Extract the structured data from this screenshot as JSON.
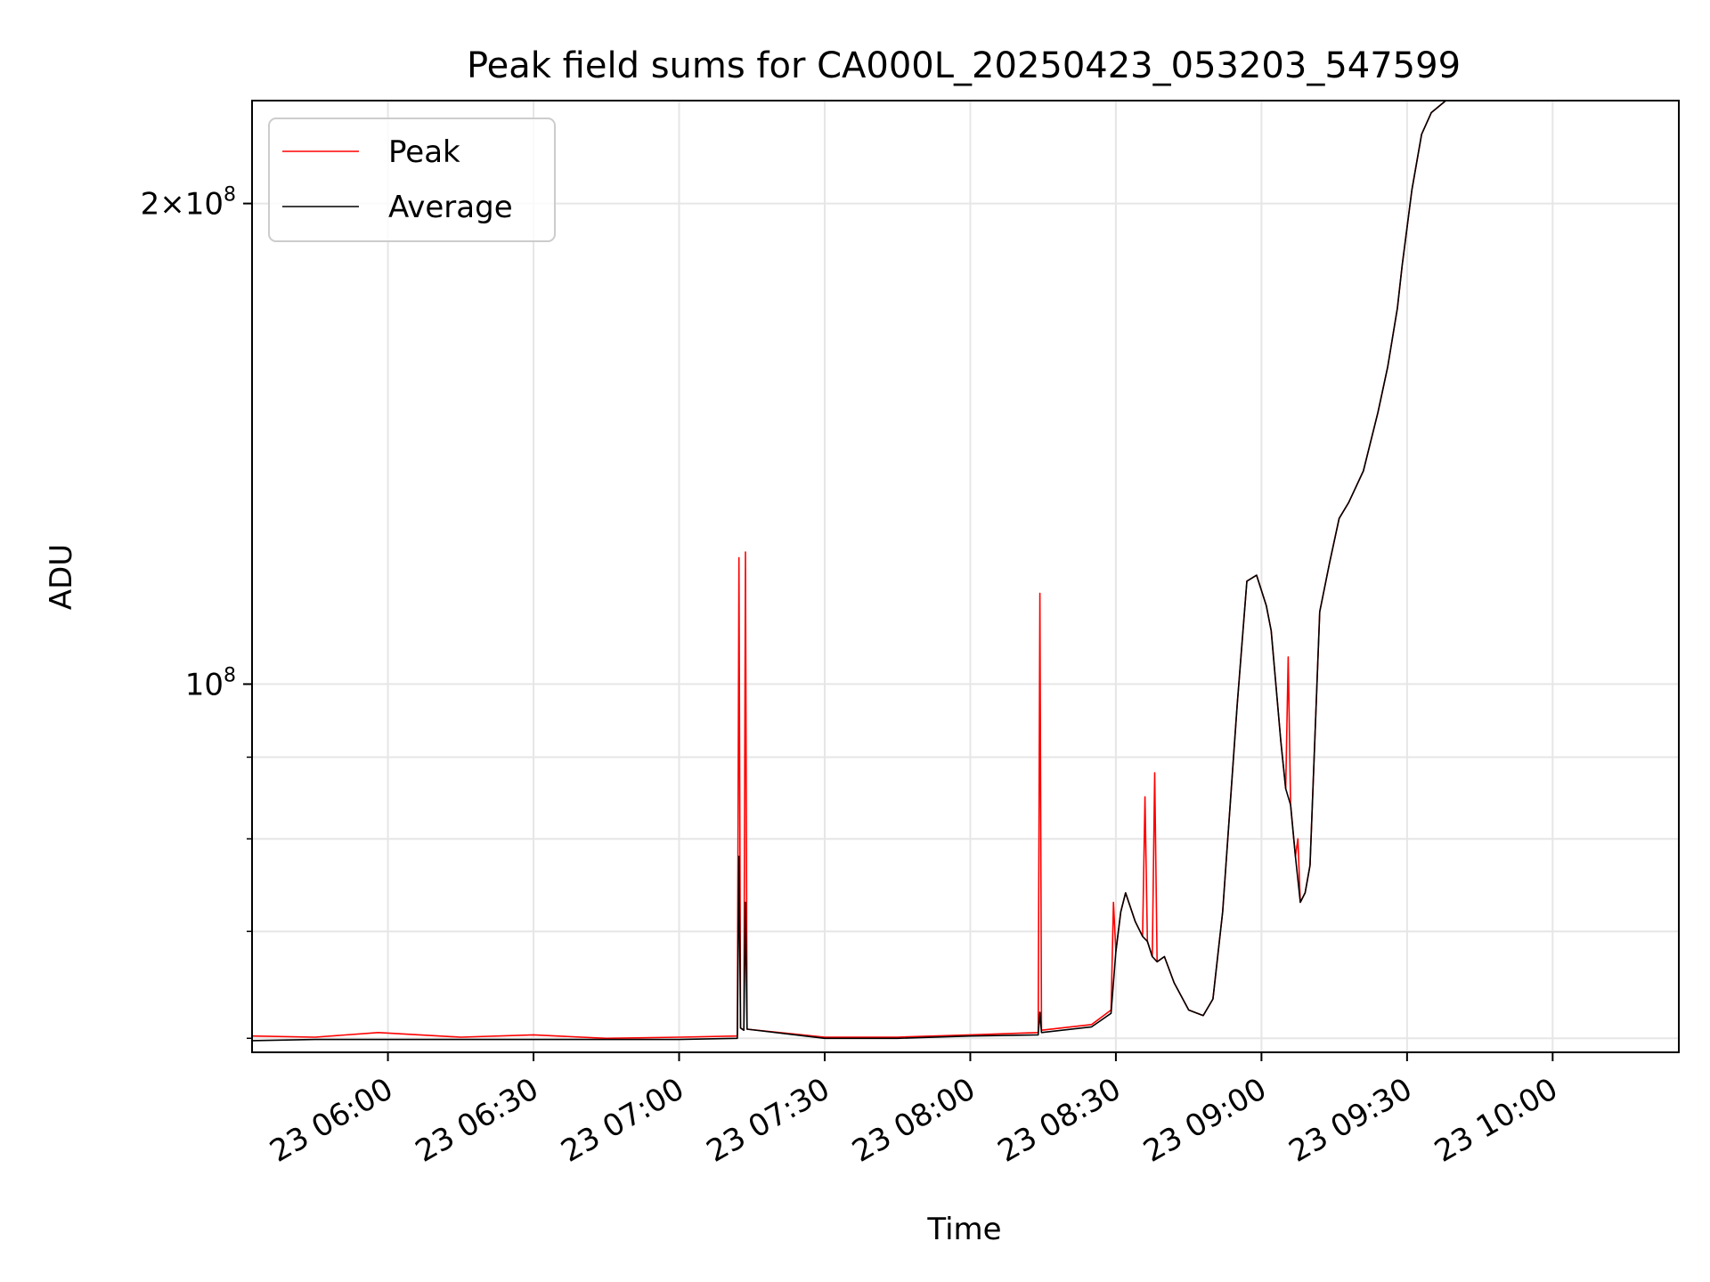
{
  "chart_data": {
    "type": "line",
    "title": "Peak field sums for CA000L_20250423_053203_547599",
    "xlabel": "Time",
    "ylabel": "ADU",
    "x_scale": "time",
    "y_scale": "log",
    "xlim": [
      "2025-04-23T05:32:00",
      "2025-04-23T10:26:00"
    ],
    "ylim": [
      58800000,
      232000000
    ],
    "x_tick_labels": [
      "23 06:00",
      "23 06:30",
      "23 07:00",
      "23 07:30",
      "23 08:00",
      "23 08:30",
      "23 09:00",
      "23 09:30",
      "23 10:00"
    ],
    "x_ticks": [
      "2025-04-23T06:00:00",
      "2025-04-23T06:30:00",
      "2025-04-23T07:00:00",
      "2025-04-23T07:30:00",
      "2025-04-23T08:00:00",
      "2025-04-23T08:30:00",
      "2025-04-23T09:00:00",
      "2025-04-23T09:30:00",
      "2025-04-23T10:00:00"
    ],
    "y_major_ticks": [
      {
        "value": 100000000,
        "base_label": "10",
        "exp_label": "8"
      },
      {
        "value": 200000000,
        "base_label": "2×10",
        "exp_label": "8"
      }
    ],
    "y_minor_ticks": [
      60000000,
      70000000,
      80000000,
      90000000
    ],
    "grid": true,
    "legend_position": "upper-left",
    "series": [
      {
        "name": "Peak",
        "color": "#ff0000",
        "points": [
          [
            "2025-04-23T05:32:00",
            60200000
          ],
          [
            "2025-04-23T05:45:00",
            60100000
          ],
          [
            "2025-04-23T05:58:00",
            60500000
          ],
          [
            "2025-04-23T06:15:00",
            60100000
          ],
          [
            "2025-04-23T06:30:00",
            60300000
          ],
          [
            "2025-04-23T06:45:00",
            60000000
          ],
          [
            "2025-04-23T07:00:00",
            60100000
          ],
          [
            "2025-04-23T07:12:00",
            60200000
          ],
          [
            "2025-04-23T07:12:20",
            120000000
          ],
          [
            "2025-04-23T07:12:40",
            60900000
          ],
          [
            "2025-04-23T07:13:20",
            60700000
          ],
          [
            "2025-04-23T07:13:40",
            121000000
          ],
          [
            "2025-04-23T07:14:00",
            60800000
          ],
          [
            "2025-04-23T07:30:00",
            60100000
          ],
          [
            "2025-04-23T07:45:00",
            60100000
          ],
          [
            "2025-04-23T08:00:00",
            60300000
          ],
          [
            "2025-04-23T08:14:00",
            60500000
          ],
          [
            "2025-04-23T08:14:20",
            114000000
          ],
          [
            "2025-04-23T08:14:40",
            60700000
          ],
          [
            "2025-04-23T08:25:00",
            61200000
          ],
          [
            "2025-04-23T08:29:00",
            62500000
          ],
          [
            "2025-04-23T08:29:30",
            73000000
          ],
          [
            "2025-04-23T08:30:00",
            68000000
          ],
          [
            "2025-04-23T08:31:00",
            72000000
          ],
          [
            "2025-04-23T08:32:00",
            74000000
          ],
          [
            "2025-04-23T08:34:00",
            71000000
          ],
          [
            "2025-04-23T08:35:30",
            69500000
          ],
          [
            "2025-04-23T08:36:00",
            85000000
          ],
          [
            "2025-04-23T08:36:30",
            69000000
          ],
          [
            "2025-04-23T08:37:30",
            67500000
          ],
          [
            "2025-04-23T08:38:00",
            88000000
          ],
          [
            "2025-04-23T08:38:30",
            67000000
          ],
          [
            "2025-04-23T08:40:00",
            67500000
          ],
          [
            "2025-04-23T08:42:00",
            65000000
          ],
          [
            "2025-04-23T08:45:00",
            62500000
          ],
          [
            "2025-04-23T08:48:00",
            62000000
          ],
          [
            "2025-04-23T08:50:00",
            63500000
          ],
          [
            "2025-04-23T08:52:00",
            72000000
          ],
          [
            "2025-04-23T08:55:00",
            97000000
          ],
          [
            "2025-04-23T08:57:00",
            116000000
          ],
          [
            "2025-04-23T08:59:00",
            117000000
          ],
          [
            "2025-04-23T09:01:00",
            112000000
          ],
          [
            "2025-04-23T09:02:00",
            108000000
          ],
          [
            "2025-04-23T09:04:00",
            92000000
          ],
          [
            "2025-04-23T09:05:00",
            86000000
          ],
          [
            "2025-04-23T09:05:30",
            104000000
          ],
          [
            "2025-04-23T09:06:00",
            84000000
          ],
          [
            "2025-04-23T09:07:00",
            78000000
          ],
          [
            "2025-04-23T09:07:30",
            80000000
          ],
          [
            "2025-04-23T09:08:00",
            73000000
          ],
          [
            "2025-04-23T09:09:00",
            74000000
          ],
          [
            "2025-04-23T09:10:00",
            77000000
          ],
          [
            "2025-04-23T09:12:00",
            111000000
          ],
          [
            "2025-04-23T09:14:00",
            119000000
          ],
          [
            "2025-04-23T09:16:00",
            127000000
          ],
          [
            "2025-04-23T09:18:00",
            130000000
          ],
          [
            "2025-04-23T09:21:00",
            136000000
          ],
          [
            "2025-04-23T09:24:00",
            148000000
          ],
          [
            "2025-04-23T09:26:00",
            158000000
          ],
          [
            "2025-04-23T09:28:00",
            172000000
          ],
          [
            "2025-04-23T09:29:00",
            183000000
          ],
          [
            "2025-04-23T09:31:00",
            204000000
          ],
          [
            "2025-04-23T09:33:00",
            221000000
          ],
          [
            "2025-04-23T09:35:00",
            228000000
          ],
          [
            "2025-04-23T09:38:00",
            232000000
          ]
        ]
      },
      {
        "name": "Average",
        "color": "#000000",
        "points": [
          [
            "2025-04-23T05:32:00",
            59800000
          ],
          [
            "2025-04-23T05:45:00",
            59900000
          ],
          [
            "2025-04-23T05:58:00",
            59900000
          ],
          [
            "2025-04-23T06:15:00",
            59900000
          ],
          [
            "2025-04-23T06:30:00",
            59900000
          ],
          [
            "2025-04-23T06:45:00",
            59900000
          ],
          [
            "2025-04-23T07:00:00",
            59900000
          ],
          [
            "2025-04-23T07:12:00",
            60000000
          ],
          [
            "2025-04-23T07:12:20",
            78000000
          ],
          [
            "2025-04-23T07:12:40",
            60900000
          ],
          [
            "2025-04-23T07:13:20",
            60700000
          ],
          [
            "2025-04-23T07:13:40",
            73000000
          ],
          [
            "2025-04-23T07:14:00",
            60800000
          ],
          [
            "2025-04-23T07:30:00",
            60000000
          ],
          [
            "2025-04-23T07:45:00",
            60000000
          ],
          [
            "2025-04-23T08:00:00",
            60200000
          ],
          [
            "2025-04-23T08:14:00",
            60300000
          ],
          [
            "2025-04-23T08:14:20",
            62300000
          ],
          [
            "2025-04-23T08:14:40",
            60500000
          ],
          [
            "2025-04-23T08:25:00",
            61000000
          ],
          [
            "2025-04-23T08:29:00",
            62200000
          ],
          [
            "2025-04-23T08:30:00",
            68000000
          ],
          [
            "2025-04-23T08:31:00",
            72000000
          ],
          [
            "2025-04-23T08:32:00",
            74000000
          ],
          [
            "2025-04-23T08:34:00",
            71000000
          ],
          [
            "2025-04-23T08:35:30",
            69500000
          ],
          [
            "2025-04-23T08:36:30",
            69000000
          ],
          [
            "2025-04-23T08:37:30",
            67500000
          ],
          [
            "2025-04-23T08:38:30",
            67000000
          ],
          [
            "2025-04-23T08:40:00",
            67500000
          ],
          [
            "2025-04-23T08:42:00",
            65000000
          ],
          [
            "2025-04-23T08:45:00",
            62500000
          ],
          [
            "2025-04-23T08:48:00",
            62000000
          ],
          [
            "2025-04-23T08:50:00",
            63500000
          ],
          [
            "2025-04-23T08:52:00",
            72000000
          ],
          [
            "2025-04-23T08:55:00",
            97000000
          ],
          [
            "2025-04-23T08:57:00",
            116000000
          ],
          [
            "2025-04-23T08:59:00",
            117000000
          ],
          [
            "2025-04-23T09:01:00",
            112000000
          ],
          [
            "2025-04-23T09:02:00",
            108000000
          ],
          [
            "2025-04-23T09:04:00",
            92000000
          ],
          [
            "2025-04-23T09:05:00",
            86000000
          ],
          [
            "2025-04-23T09:06:00",
            84000000
          ],
          [
            "2025-04-23T09:07:00",
            78000000
          ],
          [
            "2025-04-23T09:08:00",
            73000000
          ],
          [
            "2025-04-23T09:09:00",
            74000000
          ],
          [
            "2025-04-23T09:10:00",
            77000000
          ],
          [
            "2025-04-23T09:12:00",
            111000000
          ],
          [
            "2025-04-23T09:14:00",
            119000000
          ],
          [
            "2025-04-23T09:16:00",
            127000000
          ],
          [
            "2025-04-23T09:18:00",
            130000000
          ],
          [
            "2025-04-23T09:21:00",
            136000000
          ],
          [
            "2025-04-23T09:24:00",
            148000000
          ],
          [
            "2025-04-23T09:26:00",
            158000000
          ],
          [
            "2025-04-23T09:28:00",
            172000000
          ],
          [
            "2025-04-23T09:29:00",
            183000000
          ],
          [
            "2025-04-23T09:31:00",
            204000000
          ],
          [
            "2025-04-23T09:33:00",
            221000000
          ],
          [
            "2025-04-23T09:35:00",
            228000000
          ],
          [
            "2025-04-23T09:38:00",
            232000000
          ]
        ]
      }
    ]
  }
}
